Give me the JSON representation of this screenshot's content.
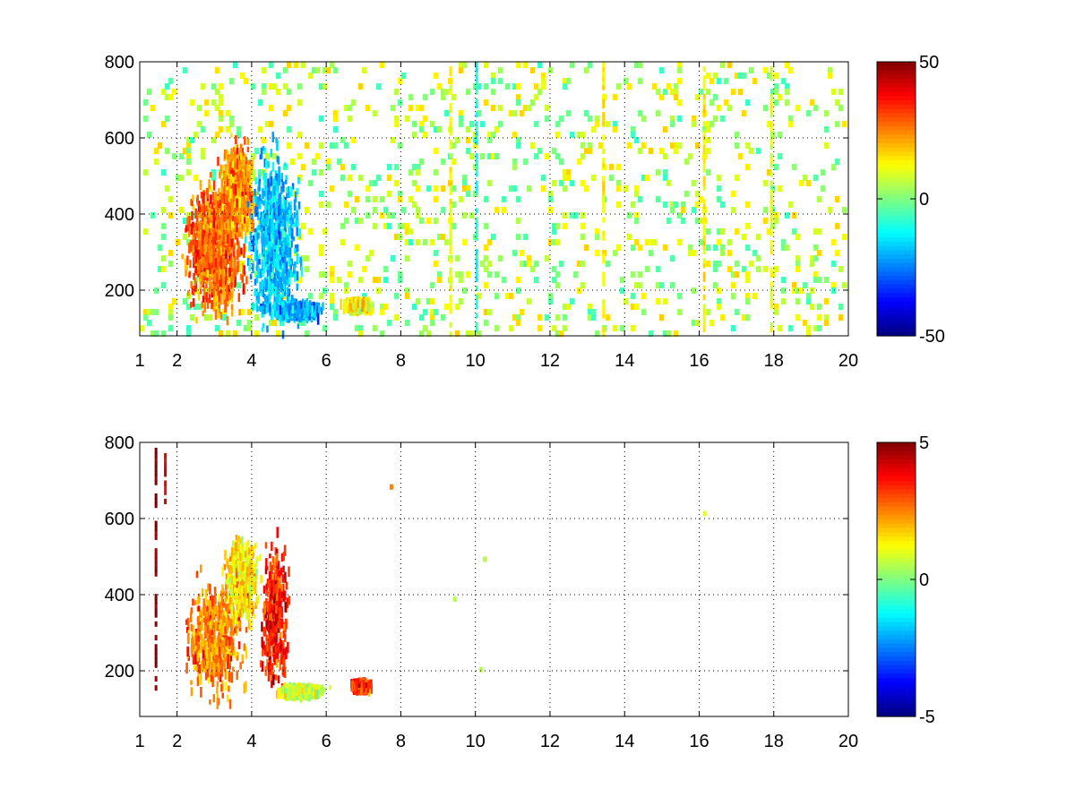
{
  "chart_data": [
    {
      "type": "heatmap",
      "title": "",
      "xlabel": "",
      "ylabel": "",
      "xlim": [
        1,
        20
      ],
      "ylim": [
        80,
        800
      ],
      "grid": true,
      "grid_style": "dotted",
      "x_ticks": [
        "1",
        "2",
        "4",
        "6",
        "8",
        "10",
        "12",
        "14",
        "16",
        "18",
        "20"
      ],
      "y_ticks": [
        "200",
        "400",
        "600",
        "800"
      ],
      "colormap": "jet",
      "colorbar": {
        "min": -50,
        "max": 50,
        "ticks": [
          "50",
          "0",
          "-50"
        ],
        "placement": "right"
      },
      "noise_fill": 0.3,
      "clusters": [
        {
          "x": 3.0,
          "y": 320,
          "value": 28,
          "spread_x": 0.7,
          "spread_y": 150,
          "density": 0.95
        },
        {
          "x": 3.6,
          "y": 470,
          "value": 24,
          "spread_x": 0.35,
          "spread_y": 100,
          "density": 0.9
        },
        {
          "x": 4.6,
          "y": 330,
          "value": -18,
          "spread_x": 0.6,
          "spread_y": 200,
          "density": 0.75
        },
        {
          "x": 5.2,
          "y": 158,
          "value": -20,
          "spread_x": 0.5,
          "spread_y": 15,
          "density": 0.85
        },
        {
          "x": 6.8,
          "y": 172,
          "value": 14,
          "spread_x": 0.3,
          "spread_y": 10,
          "density": 0.7
        }
      ],
      "vertical_streaks": [
        {
          "x": 9.3,
          "value": 12
        },
        {
          "x": 10.0,
          "value": -10
        },
        {
          "x": 13.4,
          "value": 14
        },
        {
          "x": 16.1,
          "value": 14
        },
        {
          "x": 17.9,
          "value": 10
        }
      ]
    },
    {
      "type": "heatmap",
      "title": "",
      "xlabel": "",
      "ylabel": "",
      "xlim": [
        1,
        20
      ],
      "ylim": [
        80,
        800
      ],
      "grid": true,
      "grid_style": "dotted",
      "x_ticks": [
        "1",
        "2",
        "4",
        "6",
        "8",
        "10",
        "12",
        "14",
        "16",
        "18",
        "20"
      ],
      "y_ticks": [
        "200",
        "400",
        "600",
        "800"
      ],
      "colormap": "jet",
      "colorbar": {
        "min": -5,
        "max": 5,
        "ticks": [
          "5",
          "0",
          "-5"
        ],
        "placement": "right"
      },
      "noise_fill": 0.0,
      "clusters": [
        {
          "x": 3.0,
          "y": 300,
          "value": 2.5,
          "spread_x": 0.65,
          "spread_y": 130,
          "density": 0.55
        },
        {
          "x": 3.7,
          "y": 450,
          "value": 1.5,
          "spread_x": 0.4,
          "spread_y": 100,
          "density": 0.5
        },
        {
          "x": 4.6,
          "y": 360,
          "value": 3.5,
          "spread_x": 0.3,
          "spread_y": 160,
          "density": 0.4
        },
        {
          "x": 5.3,
          "y": 158,
          "value": 0.8,
          "spread_x": 0.5,
          "spread_y": 10,
          "density": 0.7
        },
        {
          "x": 6.9,
          "y": 172,
          "value": 3.2,
          "spread_x": 0.2,
          "spread_y": 8,
          "density": 0.8
        }
      ],
      "vertical_streaks": [
        {
          "x": 1.4,
          "value": 5,
          "y_from": 150,
          "y_to": 780
        },
        {
          "x": 1.65,
          "value": 4,
          "y_from": 640,
          "y_to": 770
        }
      ],
      "isolated_points": [
        {
          "x": 7.7,
          "y": 690,
          "value": 2.5
        },
        {
          "x": 9.4,
          "y": 395,
          "value": 0.5
        },
        {
          "x": 10.2,
          "y": 500,
          "value": 0.5
        },
        {
          "x": 10.1,
          "y": 210,
          "value": 0.5
        },
        {
          "x": 16.1,
          "y": 620,
          "value": 1
        }
      ]
    }
  ]
}
